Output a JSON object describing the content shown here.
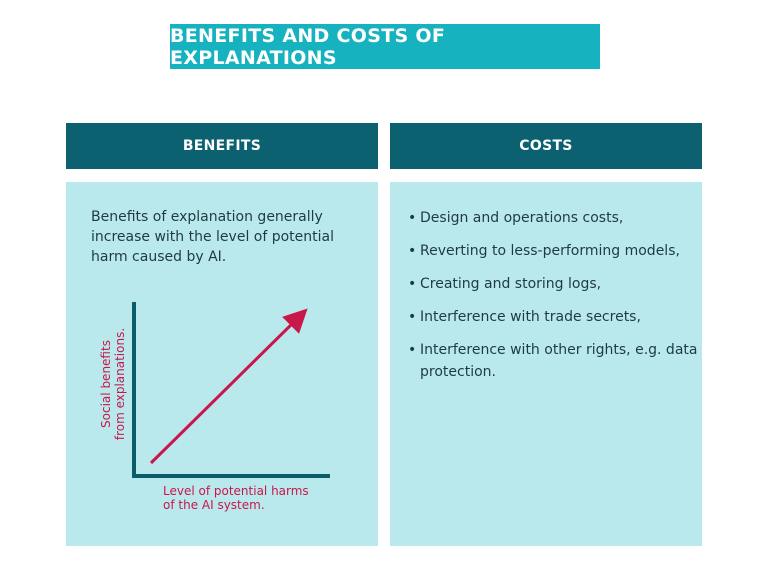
{
  "title": "BENEFITS AND COSTS OF EXPLANATIONS",
  "benefits": {
    "header": "BENEFITS",
    "description": "Benefits of explanation generally increase with the level of potential harm caused by AI.",
    "graph": {
      "y_label_line1": "Social benefits",
      "y_label_line2": "from explanations.",
      "x_label_line1": "Level of potential harms",
      "x_label_line2": "of the AI system.",
      "axis_color": "#0b5c6b",
      "arrow_color": "#c8174b"
    }
  },
  "costs": {
    "header": "COSTS",
    "bullet": "•",
    "items": [
      {
        "text": "Design and operations costs,"
      },
      {
        "text": "Reverting to less-performing models,"
      },
      {
        "text": "Creating and storing logs,"
      },
      {
        "text": "Interference with trade secrets,"
      },
      {
        "text": "Interference with other rights, e.g. data protection."
      }
    ]
  },
  "colors": {
    "title_bg": "#17b2c0",
    "header_bg": "#0b6170",
    "panel_bg": "#b9e9ec"
  }
}
